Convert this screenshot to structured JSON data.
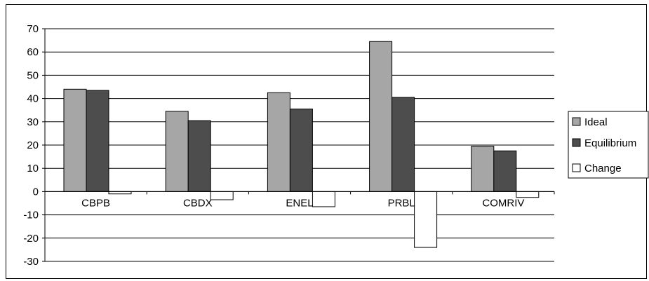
{
  "chart_data": {
    "type": "bar",
    "title": "",
    "xlabel": "",
    "ylabel": "",
    "categories": [
      "CBPB",
      "CBDX",
      "ENEL",
      "PRBL",
      "COMRIV"
    ],
    "series": [
      {
        "name": "Ideal",
        "values": [
          44,
          34.5,
          42.5,
          64.5,
          19.5
        ],
        "color": "#a6a6a6"
      },
      {
        "name": "Equilibrium",
        "values": [
          43.5,
          30.5,
          35.5,
          40.5,
          17.5
        ],
        "color": "#4d4d4d"
      },
      {
        "name": "Change",
        "values": [
          -1,
          -3.5,
          -6.5,
          -24,
          -2.5
        ],
        "color": "#ffffff"
      }
    ],
    "ylim": [
      -30,
      70
    ],
    "yticks": [
      70,
      60,
      50,
      40,
      30,
      20,
      10,
      0,
      -10,
      -20,
      -30
    ],
    "grid": true,
    "legend": "right"
  }
}
